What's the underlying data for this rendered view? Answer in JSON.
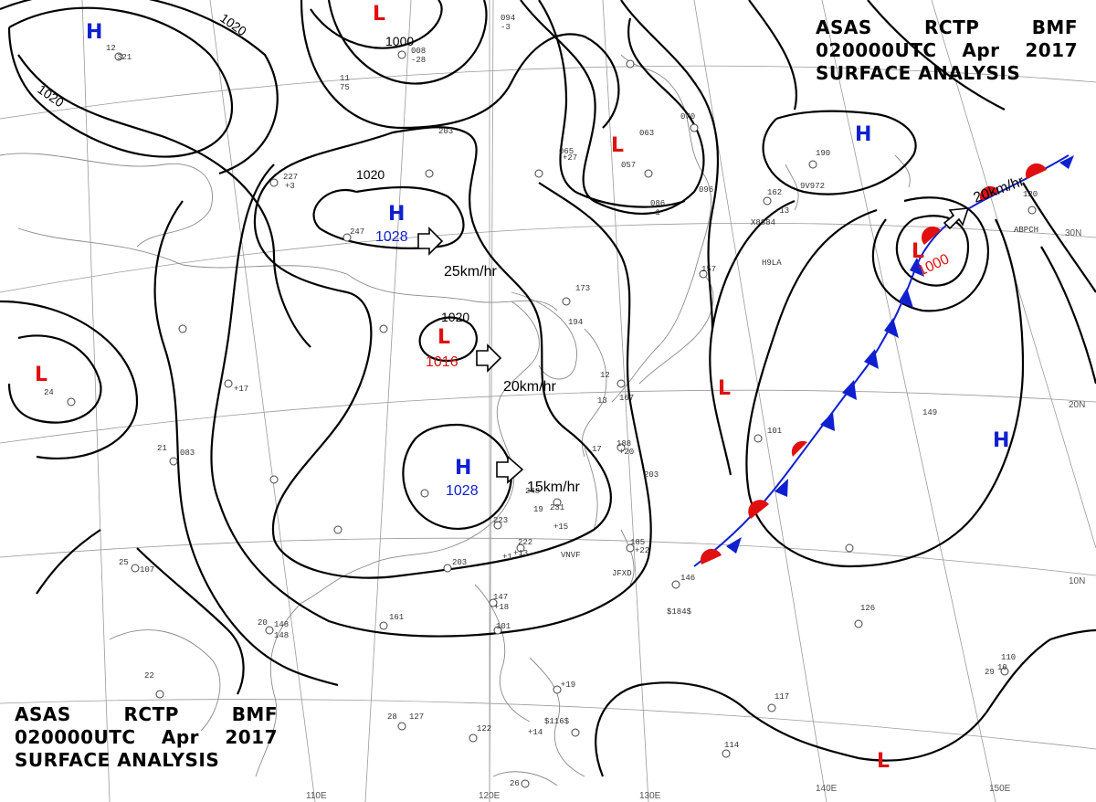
{
  "header_top": {
    "line1": [
      "ASAS",
      "RCTP",
      "BMF"
    ],
    "line2": [
      "020000UTC",
      "Apr",
      "2017"
    ],
    "line3": "SURFACE ANALYSIS"
  },
  "header_bottom": {
    "line1": [
      "ASAS",
      "RCTP",
      "BMF"
    ],
    "line2": [
      "020000UTC",
      "Apr",
      "2017"
    ],
    "line3": "SURFACE ANALYSIS"
  },
  "colors": {
    "high": "#1020d0",
    "low": "#e01010",
    "front_warm": "#e01010",
    "front_cold": "#1020d0",
    "isobar": "#000000"
  },
  "pressure_centers": [
    {
      "type": "H",
      "value": "1028"
    },
    {
      "type": "H",
      "value": "1028"
    },
    {
      "type": "L",
      "value": "1016"
    },
    {
      "type": "L",
      "value": "1000"
    },
    {
      "type": "H",
      "value": ""
    },
    {
      "type": "H",
      "value": ""
    },
    {
      "type": "H",
      "value": ""
    },
    {
      "type": "L",
      "value": ""
    },
    {
      "type": "L",
      "value": ""
    },
    {
      "type": "L",
      "value": ""
    },
    {
      "type": "L",
      "value": ""
    },
    {
      "type": "L",
      "value": ""
    }
  ],
  "isobar_labels": [
    "1020",
    "1020",
    "1000",
    "1020",
    "1020"
  ],
  "motion_labels": [
    "25km/hr",
    "20km/hr",
    "15km/hr",
    "20km/hr"
  ],
  "latitude_labels": [
    "30N",
    "20N",
    "10N"
  ],
  "longitude_labels": [
    "110E",
    "120E",
    "130E",
    "140E",
    "150E"
  ],
  "station_codes": [
    "9V972",
    "X8884",
    "H9LA",
    "ABPCH",
    "VNVF",
    "JFXD",
    "$184$",
    "$116$"
  ],
  "station_numbers": [
    "094",
    "12",
    "321",
    "11",
    "75",
    "227",
    "247",
    "203",
    "008",
    "065",
    "057",
    "063",
    "070",
    "096",
    "086",
    "190",
    "162",
    "120",
    "157",
    "173",
    "194",
    "12",
    "167",
    "101",
    "083",
    "149",
    "188",
    "203",
    "231",
    "222",
    "223",
    "248",
    "203",
    "185",
    "148",
    "146",
    "126",
    "110",
    "117",
    "114",
    "127",
    "122",
    "147",
    "101",
    "161",
    "148",
    "107",
    "22",
    "24",
    "25",
    "20",
    "21",
    "19",
    "26",
    "28",
    "29",
    "10",
    "13",
    "17",
    "+17",
    "+18",
    "+20",
    "+22",
    "+27",
    "+3",
    "+1",
    "+13",
    "+14",
    "+15",
    "+19",
    "-13",
    "-28",
    "-1",
    "-3"
  ]
}
